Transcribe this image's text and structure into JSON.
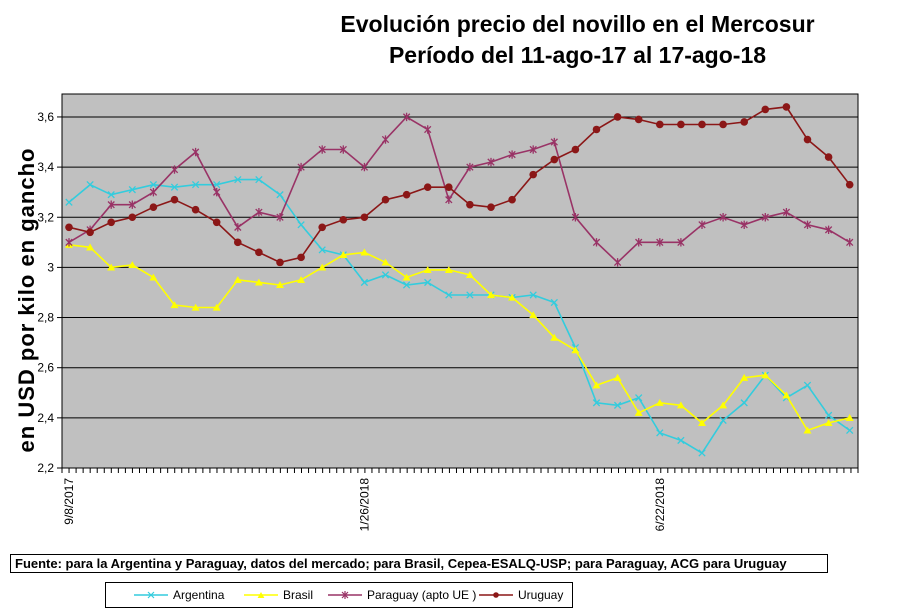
{
  "title": {
    "line1": "Evolución precio del novillo en el Mercosur",
    "line2": "Período del 11-ago-17 al 17-ago-18"
  },
  "footer": {
    "text": "Fuente: para la Argentina y Paraguay, datos del mercado; para Brasil, Cepea-ESALQ-USP; para Paraguay, ACG para Uruguay"
  },
  "chart_data": {
    "type": "line",
    "title": "Evolución precio del novillo en el Mercosur — Período del 11-ago-17 al 17-ago-18",
    "ylabel": "en USD por kilo en gancho",
    "ylim": [
      2.2,
      3.69
    ],
    "grid": true,
    "plot_bg": "#C0C0C0",
    "legend_position": "bottom",
    "n_points": 38,
    "y_ticks": [
      {
        "value": 2.2,
        "label": "2,2"
      },
      {
        "value": 2.4,
        "label": "2,4"
      },
      {
        "value": 2.6,
        "label": "2,6"
      },
      {
        "value": 2.8,
        "label": "2,8"
      },
      {
        "value": 3.0,
        "label": "3"
      },
      {
        "value": 3.2,
        "label": "3,2"
      },
      {
        "value": 3.4,
        "label": "3,4"
      },
      {
        "value": 3.6,
        "label": "3,6"
      }
    ],
    "x_tick_labels": [
      {
        "index": 0,
        "label": "9/8/2017"
      },
      {
        "index": 14,
        "label": "1/26/2018"
      },
      {
        "index": 28,
        "label": "6/22/2018"
      }
    ],
    "series": [
      {
        "name": "Argentina",
        "color": "#33CCDD",
        "marker": "x",
        "values": [
          3.26,
          3.33,
          3.29,
          3.31,
          3.33,
          3.32,
          3.33,
          3.33,
          3.35,
          3.35,
          3.29,
          3.17,
          3.07,
          3.05,
          2.94,
          2.97,
          2.93,
          2.94,
          2.89,
          2.89,
          2.89,
          2.88,
          2.89,
          2.86,
          2.68,
          2.46,
          2.45,
          2.48,
          2.34,
          2.31,
          2.26,
          2.39,
          2.46,
          2.57,
          2.48,
          2.53,
          2.41,
          2.35
        ]
      },
      {
        "name": "Brasil",
        "color": "#FFFF00",
        "marker": "triangle",
        "values": [
          3.09,
          3.08,
          3.0,
          3.01,
          2.96,
          2.85,
          2.84,
          2.84,
          2.95,
          2.94,
          2.93,
          2.95,
          3.0,
          3.05,
          3.06,
          3.02,
          2.96,
          2.99,
          2.99,
          2.97,
          2.89,
          2.88,
          2.81,
          2.72,
          2.67,
          2.53,
          2.56,
          2.42,
          2.46,
          2.45,
          2.38,
          2.45,
          2.56,
          2.57,
          2.49,
          2.35,
          2.38,
          2.4
        ]
      },
      {
        "name": "Paraguay (apto UE )",
        "color": "#993366",
        "marker": "star",
        "values": [
          3.1,
          3.15,
          3.25,
          3.25,
          3.3,
          3.39,
          3.46,
          3.3,
          3.16,
          3.22,
          3.2,
          3.4,
          3.47,
          3.47,
          3.4,
          3.51,
          3.6,
          3.55,
          3.27,
          3.4,
          3.42,
          3.45,
          3.47,
          3.5,
          3.2,
          3.1,
          3.02,
          3.1,
          3.1,
          3.1,
          3.17,
          3.2,
          3.17,
          3.2,
          3.22,
          3.17,
          3.15,
          3.1
        ]
      },
      {
        "name": "Uruguay",
        "color": "#8B1717",
        "marker": "circle",
        "values": [
          3.16,
          3.14,
          3.18,
          3.2,
          3.24,
          3.27,
          3.23,
          3.18,
          3.1,
          3.06,
          3.02,
          3.04,
          3.16,
          3.19,
          3.2,
          3.27,
          3.29,
          3.32,
          3.32,
          3.25,
          3.24,
          3.27,
          3.37,
          3.43,
          3.47,
          3.55,
          3.6,
          3.59,
          3.57,
          3.57,
          3.57,
          3.57,
          3.58,
          3.63,
          3.64,
          3.51,
          3.44,
          3.33
        ]
      }
    ]
  }
}
